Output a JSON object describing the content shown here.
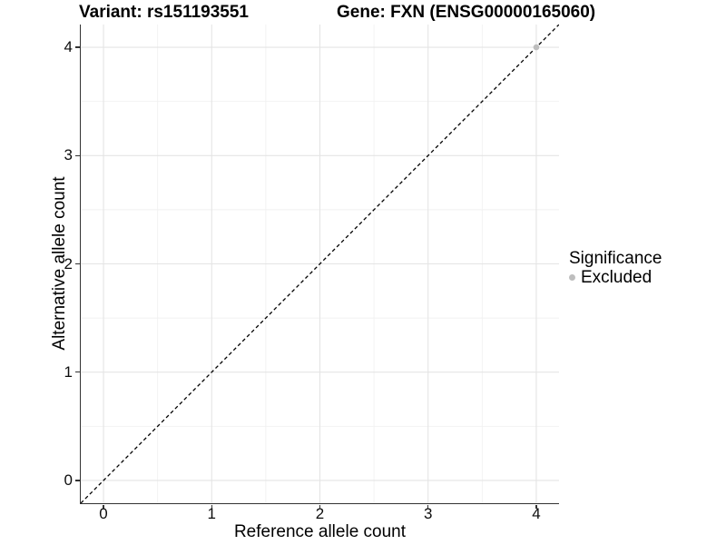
{
  "chart_data": {
    "type": "scatter",
    "titles": {
      "left": "Variant: rs151193551",
      "right": "Gene: FXN (ENSG00000165060)"
    },
    "xlabel": "Reference allele count",
    "ylabel": "Alternative allele count",
    "xlim": [
      -0.21,
      4.21
    ],
    "ylim": [
      -0.21,
      4.21
    ],
    "x_ticks": [
      0,
      1,
      2,
      3,
      4
    ],
    "y_ticks": [
      0,
      1,
      2,
      3,
      4
    ],
    "x_minor_ticks": [
      0.5,
      1.5,
      2.5,
      3.5
    ],
    "y_minor_ticks": [
      0.5,
      1.5,
      2.5,
      3.5
    ],
    "grid": "major+minor",
    "reference_line": {
      "kind": "identity",
      "slope": 1,
      "intercept": 0,
      "style": "dashed",
      "color": "#000000"
    },
    "series": [
      {
        "name": "Excluded",
        "marker": "circle",
        "color": "#bebebe",
        "points": [
          [
            4,
            4
          ]
        ]
      }
    ],
    "legend": {
      "position": "right",
      "title": "Significance",
      "entries": [
        {
          "label": "Excluded",
          "color": "#bebebe",
          "marker": "circle"
        }
      ]
    },
    "theme": {
      "background": "#ffffff",
      "grid_major_color": "#e4e4e4",
      "grid_minor_color": "#f1f1f1",
      "axis_line_color": "#333333",
      "text_color": "#000000"
    }
  }
}
